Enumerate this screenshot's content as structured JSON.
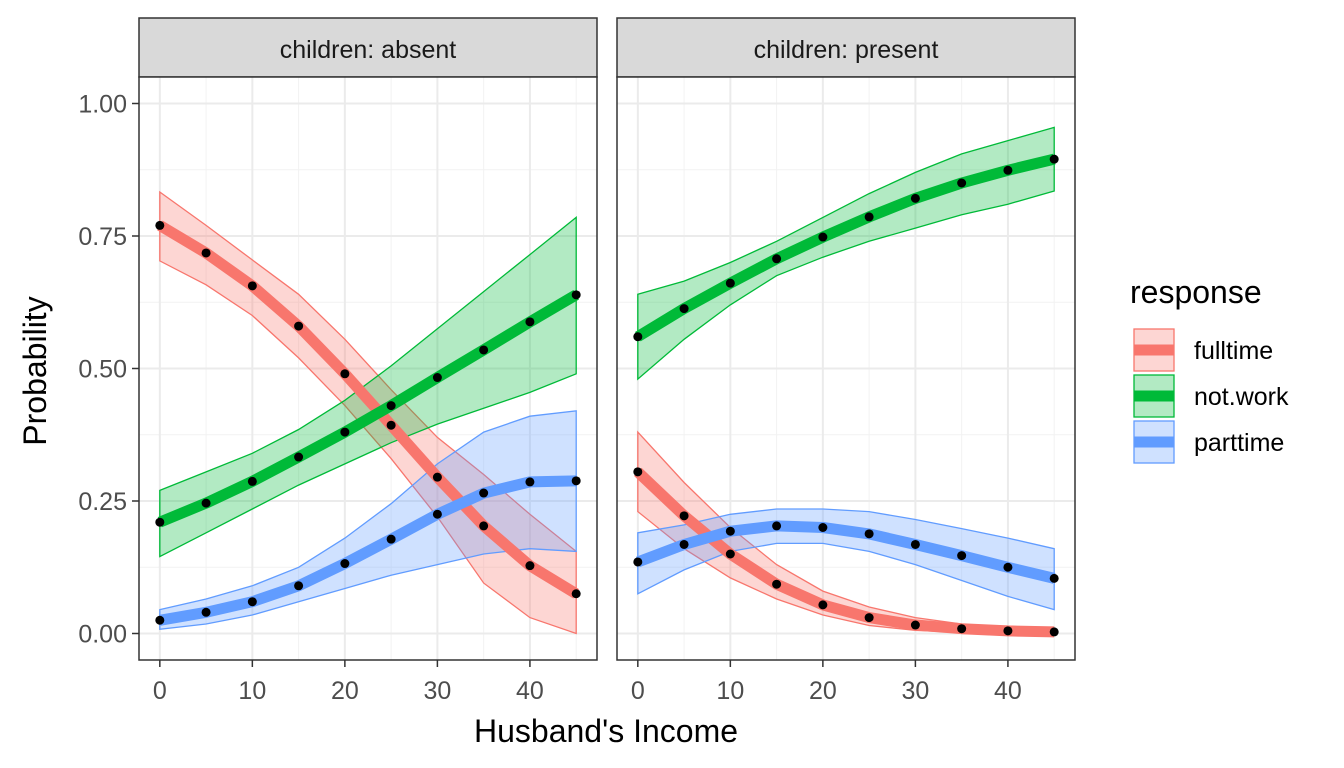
{
  "chart_data": {
    "type": "line",
    "xlabel": "Husband's Income",
    "ylabel": "Probability",
    "xlim": [
      -2.25,
      47.25
    ],
    "ylim": [
      -0.05,
      1.05
    ],
    "x_ticks": [
      0,
      10,
      20,
      30,
      40
    ],
    "y_ticks": [
      0,
      0.25,
      0.5,
      0.75,
      1.0
    ],
    "y_tick_labels": [
      "0.00",
      "0.25",
      "0.50",
      "0.75",
      "1.00"
    ],
    "grid": true,
    "legend": {
      "title": "response",
      "placement": "right",
      "entries": [
        "fulltime",
        "not.work",
        "parttime"
      ]
    },
    "colors": {
      "fulltime": "#F8766D",
      "not.work": "#00BA38",
      "parttime": "#619CFF",
      "points": "#000000",
      "strip_fill": "#D9D9D9"
    },
    "x": [
      0,
      5,
      10,
      15,
      20,
      25,
      30,
      35,
      40,
      45
    ],
    "panels": [
      {
        "strip": "children: absent",
        "series": [
          {
            "name": "fulltime",
            "values": [
              0.77,
              0.718,
              0.656,
              0.58,
              0.49,
              0.393,
              0.295,
              0.203,
              0.128,
              0.075
            ],
            "lower": [
              0.703,
              0.658,
              0.6,
              0.52,
              0.43,
              0.33,
              0.22,
              0.095,
              0.03,
              0.0
            ],
            "upper": [
              0.833,
              0.77,
              0.705,
              0.64,
              0.555,
              0.46,
              0.37,
              0.3,
              0.225,
              0.155
            ]
          },
          {
            "name": "not.work",
            "values": [
              0.21,
              0.246,
              0.287,
              0.333,
              0.38,
              0.43,
              0.483,
              0.535,
              0.588,
              0.639
            ],
            "lower": [
              0.145,
              0.19,
              0.235,
              0.28,
              0.32,
              0.36,
              0.395,
              0.425,
              0.455,
              0.49
            ],
            "upper": [
              0.27,
              0.305,
              0.34,
              0.385,
              0.44,
              0.505,
              0.575,
              0.645,
              0.715,
              0.785
            ]
          },
          {
            "name": "parttime",
            "values": [
              0.025,
              0.04,
              0.06,
              0.09,
              0.132,
              0.178,
              0.225,
              0.265,
              0.286,
              0.288
            ],
            "lower": [
              0.008,
              0.018,
              0.035,
              0.06,
              0.085,
              0.11,
              0.13,
              0.15,
              0.16,
              0.155
            ],
            "upper": [
              0.045,
              0.065,
              0.09,
              0.125,
              0.18,
              0.245,
              0.32,
              0.38,
              0.41,
              0.42
            ]
          }
        ]
      },
      {
        "strip": "children: present",
        "series": [
          {
            "name": "fulltime",
            "values": [
              0.305,
              0.222,
              0.15,
              0.093,
              0.054,
              0.03,
              0.016,
              0.009,
              0.005,
              0.003
            ],
            "lower": [
              0.23,
              0.16,
              0.105,
              0.065,
              0.035,
              0.015,
              0.006,
              0.002,
              0.0,
              0.0
            ],
            "upper": [
              0.38,
              0.285,
              0.2,
              0.13,
              0.08,
              0.05,
              0.03,
              0.018,
              0.012,
              0.008
            ]
          },
          {
            "name": "not.work",
            "values": [
              0.56,
              0.613,
              0.661,
              0.707,
              0.748,
              0.786,
              0.821,
              0.85,
              0.874,
              0.895
            ],
            "lower": [
              0.48,
              0.555,
              0.62,
              0.675,
              0.71,
              0.74,
              0.765,
              0.79,
              0.81,
              0.835
            ],
            "upper": [
              0.64,
              0.665,
              0.7,
              0.74,
              0.785,
              0.83,
              0.87,
              0.905,
              0.93,
              0.955
            ]
          },
          {
            "name": "parttime",
            "values": [
              0.135,
              0.168,
              0.193,
              0.203,
              0.2,
              0.188,
              0.168,
              0.147,
              0.125,
              0.104
            ],
            "lower": [
              0.075,
              0.12,
              0.155,
              0.17,
              0.17,
              0.155,
              0.13,
              0.1,
              0.07,
              0.045
            ],
            "upper": [
              0.19,
              0.205,
              0.225,
              0.235,
              0.235,
              0.23,
              0.215,
              0.198,
              0.18,
              0.16
            ]
          }
        ]
      }
    ]
  }
}
